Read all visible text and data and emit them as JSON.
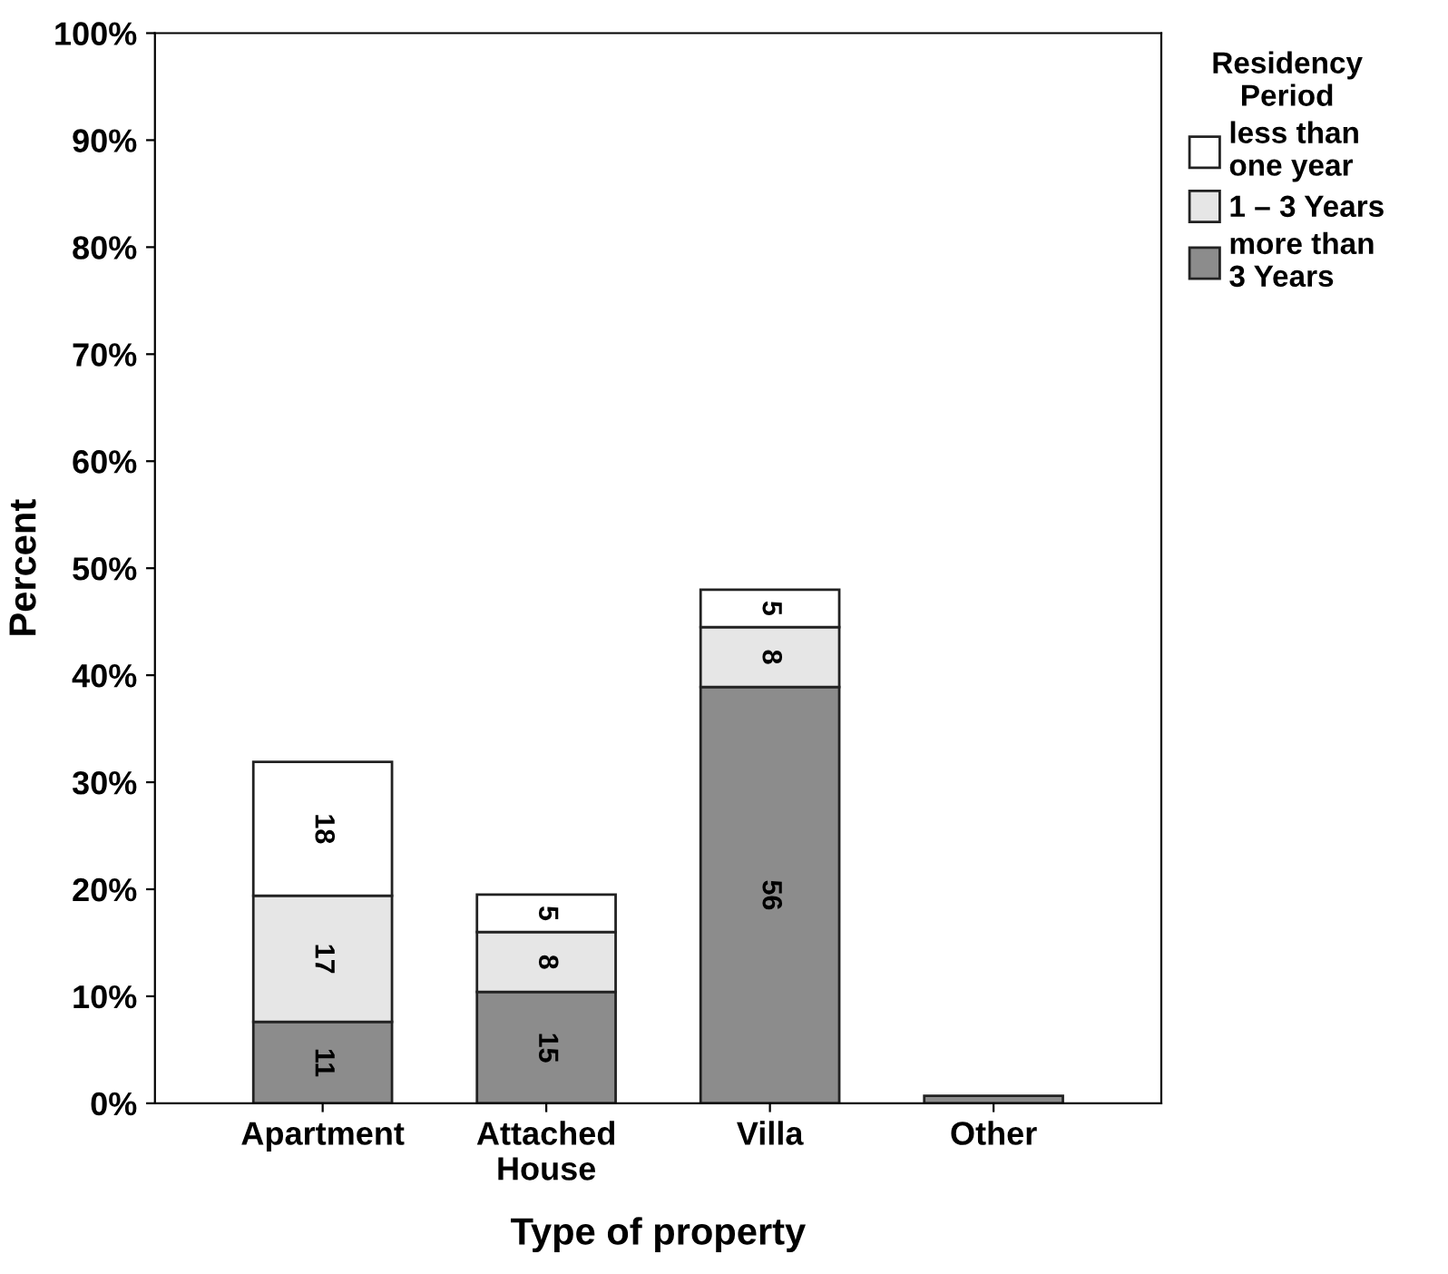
{
  "chart_data": {
    "type": "bar",
    "stacked": true,
    "xlabel": "Type of property",
    "ylabel": "Percent",
    "legend_title": "Residency Period",
    "legend": "right",
    "grid": false,
    "categories": [
      "Apartment",
      "Attached\nHouse",
      "Villa",
      "Other"
    ],
    "ylim": [
      0,
      100
    ],
    "yticks": [
      {
        "value": 0,
        "label": "0%"
      },
      {
        "value": 10,
        "label": "10%"
      },
      {
        "value": 20,
        "label": "20%"
      },
      {
        "value": 30,
        "label": "30%"
      },
      {
        "value": 40,
        "label": "40%"
      },
      {
        "value": 50,
        "label": "50%"
      },
      {
        "value": 60,
        "label": "60%"
      },
      {
        "value": 70,
        "label": "70%"
      },
      {
        "value": 80,
        "label": "80%"
      },
      {
        "value": 90,
        "label": "90%"
      },
      {
        "value": 100,
        "label": "100%"
      }
    ],
    "series": [
      {
        "name": "more than\n3 Years",
        "color": "#8c8c8c",
        "values": [
          7.6,
          10.4,
          38.9,
          0.7
        ]
      },
      {
        "name": "1 – 3 Years",
        "color": "#e6e6e6",
        "values": [
          11.8,
          5.6,
          5.6,
          null
        ]
      },
      {
        "name": "less than\none year",
        "color": "#ffffff",
        "values": [
          12.5,
          3.5,
          3.5,
          null
        ]
      }
    ],
    "annotations": [
      "11",
      "17",
      "18",
      "15",
      "8",
      "5",
      "56",
      "8",
      "5"
    ]
  }
}
